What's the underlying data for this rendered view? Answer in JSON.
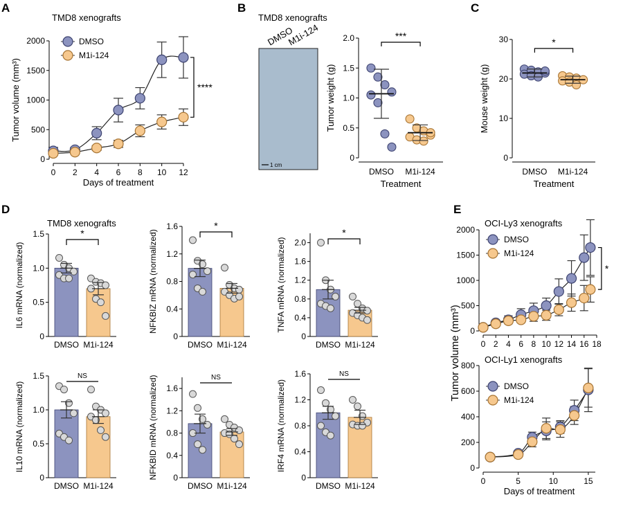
{
  "colors": {
    "dmso": "#8c93bf",
    "dmso_edge": "#3d4370",
    "m1i": "#f6c88e",
    "m1i_edge": "#a77433",
    "dot": "#d9d9d9"
  },
  "panels": {
    "A": "A",
    "B": "B",
    "C": "C",
    "D": "D",
    "E": "E"
  },
  "photo": {
    "col1": "DMSO",
    "col2": "M1i-124",
    "scale": "1 cm"
  },
  "chart_data": [
    {
      "id": "A",
      "type": "line",
      "title": "TMD8 xenografts",
      "xlabel": "Days of treatment",
      "ylabel": "Tumor volume (mm³)",
      "xlim": [
        0,
        12
      ],
      "ylim": [
        0,
        2000
      ],
      "xticks": [
        0,
        2,
        4,
        6,
        8,
        10,
        12
      ],
      "yticks": [
        0,
        500,
        1000,
        1500,
        2000
      ],
      "x": [
        0,
        2,
        4,
        6,
        8,
        10,
        12
      ],
      "series": [
        {
          "name": "DMSO",
          "values": [
            140,
            160,
            440,
            830,
            1030,
            1680,
            1720
          ],
          "err": [
            60,
            40,
            110,
            200,
            180,
            300,
            350
          ]
        },
        {
          "name": "M1i-124",
          "values": [
            100,
            120,
            190,
            260,
            480,
            630,
            710
          ],
          "err": [
            30,
            20,
            40,
            60,
            100,
            120,
            140
          ]
        }
      ],
      "significance": "****"
    },
    {
      "id": "B",
      "type": "scatter",
      "title": "TMD8 xenografts",
      "xlabel": "Treatment",
      "ylabel": "Tumor weight (g)",
      "categories": [
        "DMSO",
        "M1i-124"
      ],
      "ylim": [
        0,
        2.0
      ],
      "yticks": [
        0,
        0.5,
        1.0,
        1.5,
        2.0
      ],
      "groups": [
        {
          "name": "DMSO",
          "points": [
            1.5,
            1.35,
            1.22,
            1.1,
            1.05,
            0.92,
            0.4,
            0.18
          ],
          "mean": 1.07,
          "err": 0.41
        },
        {
          "name": "M1i-124",
          "points": [
            0.65,
            0.5,
            0.45,
            0.38,
            0.35,
            0.3,
            0.28,
            0.42
          ],
          "mean": 0.42,
          "err": 0.13
        }
      ],
      "significance": "***"
    },
    {
      "id": "C",
      "type": "scatter",
      "xlabel": "Treatment",
      "ylabel": "Mouse weight (g)",
      "categories": [
        "DMSO",
        "M1i-124"
      ],
      "ylim": [
        0,
        30
      ],
      "yticks": [
        0,
        10,
        20,
        30
      ],
      "groups": [
        {
          "name": "DMSO",
          "points": [
            22.5,
            22.2,
            21.8,
            21.5,
            21.2,
            20.8,
            20.5,
            22.0
          ],
          "mean": 21.5,
          "err": 1.0
        },
        {
          "name": "M1i-124",
          "points": [
            20.8,
            20.5,
            20.2,
            19.8,
            19.5,
            19.2,
            18.5
          ],
          "mean": 19.8,
          "err": 0.9
        }
      ],
      "significance": "*"
    },
    {
      "id": "D",
      "type": "bar",
      "title": "TMD8 xenografts",
      "subplots": [
        {
          "ylabel": "IL6 mRNA (normalized)",
          "ylim": [
            0,
            1.5
          ],
          "yticks": [
            "0",
            "0.5",
            "1.0",
            "1.5"
          ],
          "ytickvals": [
            0,
            0.5,
            1.0,
            1.5
          ],
          "categories": [
            "DMSO",
            "M1i-124"
          ],
          "values": [
            1.0,
            0.7
          ],
          "err": [
            0.07,
            0.09
          ],
          "points": [
            [
              1.15,
              1.05,
              1.0,
              0.95,
              0.9,
              0.85,
              0.85
            ],
            [
              0.85,
              0.8,
              0.78,
              0.75,
              0.7,
              0.55,
              0.5,
              0.3
            ]
          ],
          "significance": "*"
        },
        {
          "ylabel": "NFKBIZ mRNA (normalized)",
          "ylim": [
            0,
            1.6
          ],
          "yticks": [
            "0",
            "0.4",
            "0.8",
            "1.2",
            "1.6"
          ],
          "ytickvals": [
            0,
            0.4,
            0.8,
            1.2,
            1.6
          ],
          "categories": [
            "DMSO",
            "M1i-124"
          ],
          "values": [
            0.99,
            0.7
          ],
          "err": [
            0.12,
            0.07
          ],
          "points": [
            [
              1.4,
              1.1,
              1.05,
              0.95,
              0.9,
              0.7,
              0.65
            ],
            [
              1.0,
              0.75,
              0.7,
              0.68,
              0.65,
              0.6,
              0.55,
              0.58
            ]
          ],
          "significance": "*"
        },
        {
          "ylabel": "TNFA mRNA (normalized)",
          "ylim": [
            0,
            2.2
          ],
          "yticks": [
            "0",
            "0.4",
            "0.8",
            "1.2",
            "1.6",
            "2.0"
          ],
          "ytickvals": [
            0,
            0.4,
            0.8,
            1.2,
            1.6,
            2.0
          ],
          "categories": [
            "DMSO",
            "M1i-124"
          ],
          "values": [
            1.0,
            0.56
          ],
          "err": [
            0.2,
            0.06
          ],
          "points": [
            [
              2.0,
              1.2,
              1.0,
              0.85,
              0.7,
              0.65,
              0.6
            ],
            [
              0.85,
              0.7,
              0.6,
              0.55,
              0.5,
              0.45,
              0.4,
              0.35
            ]
          ],
          "significance": "*"
        },
        {
          "ylabel": "IL10 mRNA (normalized)",
          "ylim": [
            0,
            1.5
          ],
          "yticks": [
            "0",
            "0.5",
            "1.0",
            "1.5"
          ],
          "ytickvals": [
            0,
            0.5,
            1.0,
            1.5
          ],
          "categories": [
            "DMSO",
            "M1i-124"
          ],
          "values": [
            1.0,
            0.9
          ],
          "err": [
            0.12,
            0.1
          ],
          "points": [
            [
              1.35,
              1.3,
              1.1,
              0.95,
              0.65,
              0.6,
              0.55
            ],
            [
              1.3,
              1.05,
              1.0,
              0.95,
              0.9,
              0.85,
              0.7,
              0.6
            ]
          ],
          "significance": "NS"
        },
        {
          "ylabel": "NFKBID mRNA (normalized)",
          "ylim": [
            0,
            1.8
          ],
          "yticks": [
            "0",
            "0.4",
            "0.8",
            "1.2",
            "1.6"
          ],
          "ytickvals": [
            0,
            0.4,
            0.8,
            1.2,
            1.6
          ],
          "categories": [
            "DMSO",
            "M1i-124"
          ],
          "values": [
            0.97,
            0.82
          ],
          "err": [
            0.17,
            0.06
          ],
          "points": [
            [
              1.5,
              1.25,
              1.05,
              0.95,
              0.8,
              0.6,
              0.5
            ],
            [
              1.05,
              0.95,
              0.9,
              0.85,
              0.8,
              0.78,
              0.7,
              0.6
            ]
          ],
          "significance": "NS"
        },
        {
          "ylabel": "IRF4 mRNA (normalized)",
          "ylim": [
            0,
            1.6
          ],
          "yticks": [
            "0",
            "0.4",
            "0.8",
            "1.2",
            "1.6"
          ],
          "ytickvals": [
            0,
            0.4,
            0.8,
            1.2,
            1.6
          ],
          "categories": [
            "DMSO",
            "M1i-124"
          ],
          "values": [
            1.0,
            0.93
          ],
          "err": [
            0.1,
            0.11
          ],
          "points": [
            [
              1.35,
              1.15,
              1.05,
              0.95,
              0.8,
              0.7,
              0.65
            ],
            [
              1.2,
              1.1,
              0.95,
              0.85,
              0.82,
              0.8,
              0.8
            ]
          ],
          "significance": "NS"
        }
      ]
    },
    {
      "id": "E",
      "type": "line",
      "ylabel": "Tumor volume (mm³)",
      "xlabel": "Days of treatment",
      "subplots": [
        {
          "title": "OCI-Ly3 xenografts",
          "xlim": [
            0,
            18
          ],
          "ylim": [
            0,
            2000
          ],
          "xticks": [
            0,
            2,
            4,
            6,
            8,
            10,
            12,
            14,
            16,
            18
          ],
          "yticks": [
            0,
            500,
            1000,
            1500,
            2000
          ],
          "series": [
            {
              "name": "DMSO",
              "x": [
                0,
                2,
                4,
                6,
                8,
                10,
                12,
                14,
                16,
                17
              ],
              "values": [
                70,
                160,
                220,
                320,
                400,
                500,
                780,
                1040,
                1450,
                1650
              ],
              "err": [
                30,
                40,
                80,
                120,
                150,
                150,
                250,
                350,
                450,
                550
              ]
            },
            {
              "name": "M1i-124",
              "x": [
                0,
                2,
                4,
                6,
                8,
                10,
                12,
                14,
                16,
                17
              ],
              "values": [
                70,
                140,
                200,
                220,
                290,
                310,
                420,
                560,
                650,
                820
              ],
              "err": [
                30,
                30,
                60,
                60,
                100,
                100,
                120,
                170,
                250,
                250
              ]
            }
          ],
          "significance": "*"
        },
        {
          "title": "OCI-Ly1 xenografts",
          "xlim": [
            0,
            16
          ],
          "ylim": [
            0,
            800
          ],
          "xticks": [
            0,
            5,
            10,
            15
          ],
          "yticks": [
            0,
            200,
            400,
            600,
            800
          ],
          "series": [
            {
              "name": "DMSO",
              "x": [
                1,
                5,
                7,
                9,
                11,
                13,
                15
              ],
              "values": [
                85,
                115,
                240,
                290,
                320,
                450,
                610
              ],
              "err": [
                10,
                20,
                40,
                70,
                50,
                80,
                170
              ]
            },
            {
              "name": "M1i-124",
              "x": [
                1,
                5,
                7,
                9,
                11,
                13,
                15
              ],
              "values": [
                85,
                105,
                205,
                310,
                300,
                410,
                625
              ],
              "err": [
                10,
                20,
                40,
                80,
                60,
                70,
                150
              ]
            }
          ]
        }
      ]
    }
  ]
}
